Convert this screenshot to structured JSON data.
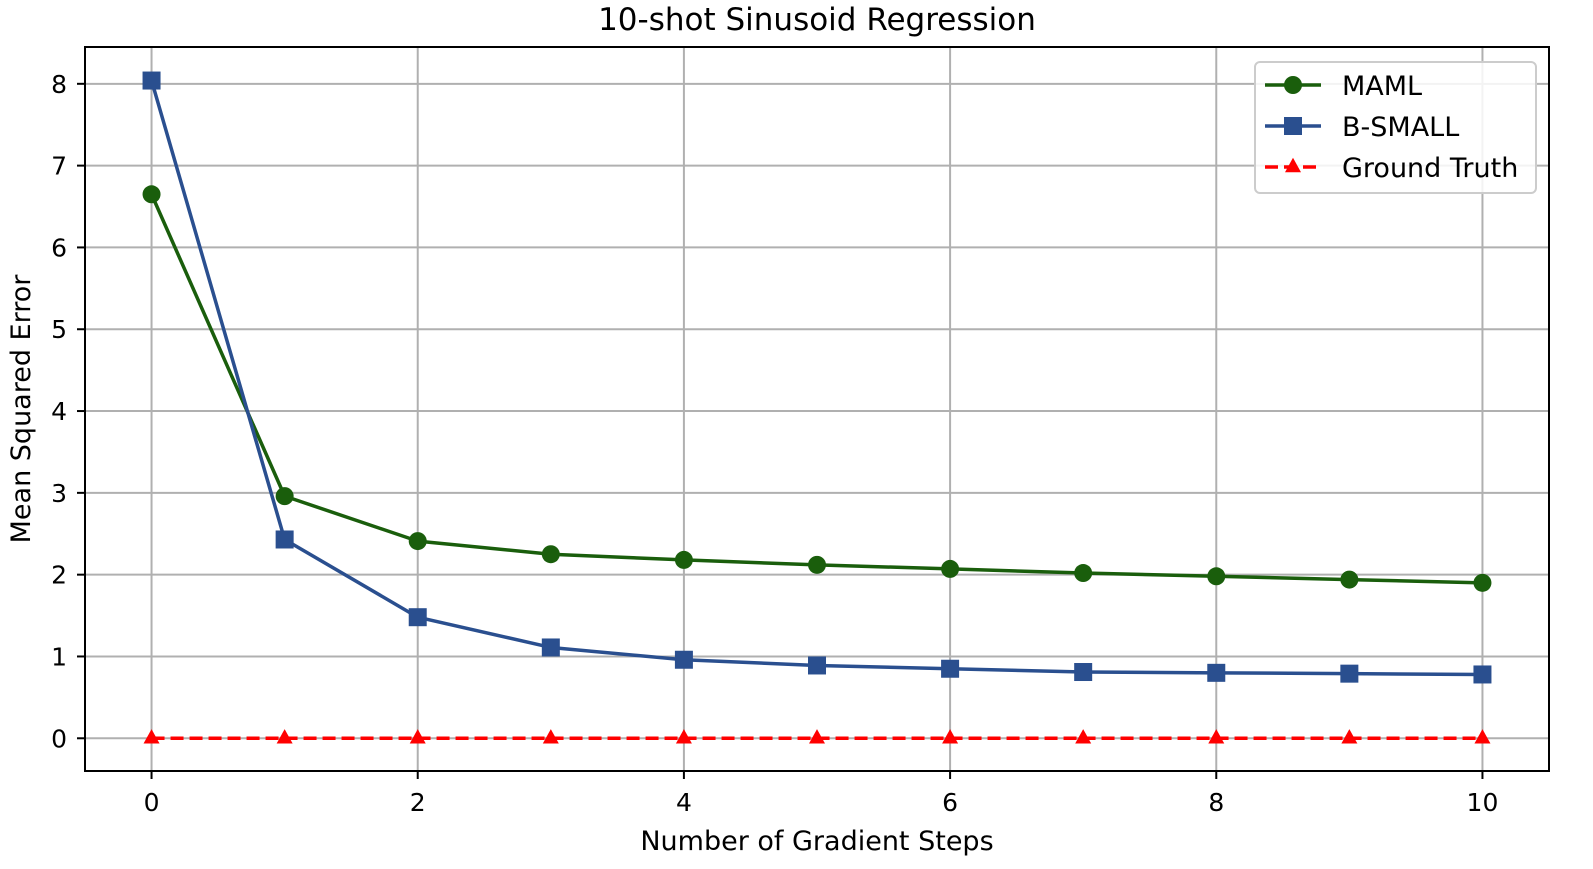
{
  "chart_data": {
    "type": "line",
    "title": "10-shot Sinusoid Regression",
    "xlabel": "Number of Gradient Steps",
    "ylabel": "Mean Squared Error",
    "xlim": [
      -0.5,
      10.5
    ],
    "ylim": [
      -0.4,
      8.45
    ],
    "xticks": [
      0,
      2,
      4,
      6,
      8,
      10
    ],
    "yticks": [
      0,
      1,
      2,
      3,
      4,
      5,
      6,
      7,
      8
    ],
    "grid": true,
    "legend_position": "top-right",
    "x": [
      0,
      1,
      2,
      3,
      4,
      5,
      6,
      7,
      8,
      9,
      10
    ],
    "series": [
      {
        "name": "MAML",
        "color": "#1a5e0c",
        "marker": "circle",
        "linestyle": "solid",
        "values": [
          6.65,
          2.96,
          2.41,
          2.25,
          2.18,
          2.12,
          2.07,
          2.02,
          1.98,
          1.94,
          1.9
        ]
      },
      {
        "name": "B-SMALL",
        "color": "#2a4f8f",
        "marker": "square",
        "linestyle": "solid",
        "values": [
          8.04,
          2.43,
          1.48,
          1.11,
          0.96,
          0.89,
          0.85,
          0.81,
          0.8,
          0.79,
          0.78
        ]
      },
      {
        "name": "Ground Truth",
        "color": "#ff0000",
        "marker": "triangle",
        "linestyle": "dashed",
        "values": [
          0,
          0,
          0,
          0,
          0,
          0,
          0,
          0,
          0,
          0,
          0
        ]
      }
    ]
  }
}
